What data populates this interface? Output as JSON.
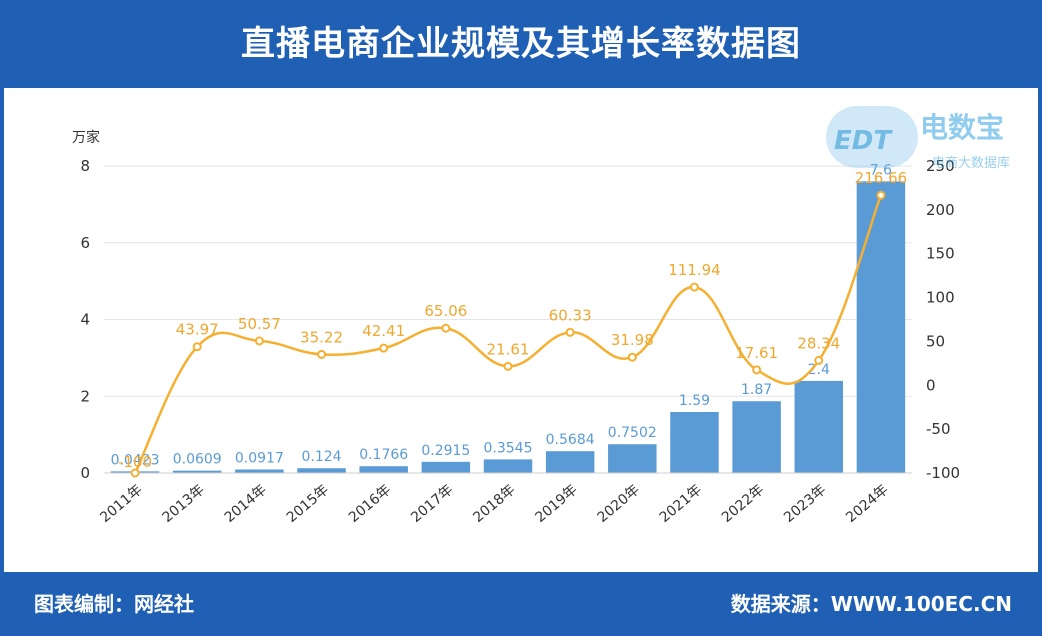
{
  "header": {
    "title": "直播电商企业规模及其增长率数据图"
  },
  "footer": {
    "left": "图表编制：网经社",
    "right": "数据来源：WWW.100EC.CN"
  },
  "logo": {
    "title": "电数宝",
    "cloud_text": "EDT",
    "subtitle": "电商大数据库"
  },
  "colors": {
    "bar": "#5b9bd5",
    "line": "#f5b031",
    "line_label": "#f0a830",
    "bar_label": "#5b9bd5",
    "brand": "#1f5fb4"
  },
  "chart_data": {
    "type": "bar",
    "categories": [
      "2011年",
      "2013年",
      "2014年",
      "2015年",
      "2016年",
      "2017年",
      "2018年",
      "2019年",
      "2020年",
      "2021年",
      "2022年",
      "2023年",
      "2024年"
    ],
    "series": [
      {
        "type": "bar",
        "axis": "left",
        "values": [
          0.0423,
          0.0609,
          0.0917,
          0.124,
          0.1766,
          0.2915,
          0.3545,
          0.5684,
          0.7502,
          1.59,
          1.87,
          2.4,
          7.6
        ],
        "labels": [
          "0.0423",
          "0.0609",
          "0.0917",
          "0.124",
          "0.1766",
          "0.2915",
          "0.3545",
          "0.5684",
          "0.7502",
          "1.59",
          "1.87",
          "2.4",
          "7.6"
        ]
      },
      {
        "type": "line",
        "axis": "right",
        "values": [
          -100,
          43.97,
          50.57,
          35.22,
          42.41,
          65.06,
          21.61,
          60.33,
          31.98,
          111.94,
          17.61,
          28.34,
          216.66
        ],
        "labels": [
          "-100",
          "43.97",
          "50.57",
          "35.22",
          "42.41",
          "65.06",
          "21.61",
          "60.33",
          "31.98",
          "111.94",
          "17.61",
          "28.34",
          "216.66"
        ]
      }
    ],
    "ylabel": "万家",
    "ylim": [
      0,
      8
    ],
    "yticks": [
      "0",
      "2",
      "4",
      "6",
      "8"
    ],
    "y2lim": [
      -100,
      250
    ],
    "y2ticks": [
      "-100",
      "-50",
      "0",
      "50",
      "100",
      "150",
      "200",
      "250"
    ],
    "grid": true
  }
}
